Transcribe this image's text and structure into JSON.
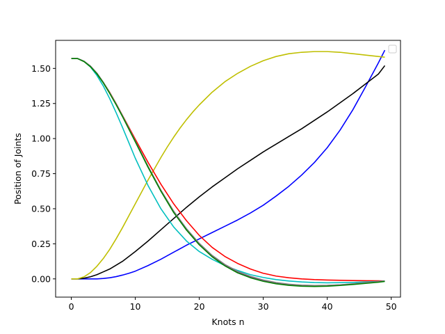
{
  "chart_data": {
    "type": "line",
    "title": "",
    "xlabel": "Knots n",
    "ylabel": "Position of Joints",
    "xlim": [
      -2.45,
      51.45
    ],
    "ylim": [
      -0.13,
      1.7
    ],
    "xticks": [
      0,
      10,
      20,
      30,
      40,
      50
    ],
    "yticks": [
      0.0,
      0.25,
      0.5,
      0.75,
      1.0,
      1.25,
      1.5
    ],
    "grid": false,
    "legend": {
      "position": "top-right",
      "entries": []
    },
    "series": [
      {
        "color": "#0000ff",
        "x": [
          0,
          1,
          2,
          3,
          4,
          5,
          6,
          7,
          8,
          9,
          10,
          12,
          14,
          16,
          18,
          20,
          22,
          24,
          26,
          28,
          30,
          32,
          34,
          36,
          38,
          40,
          42,
          44,
          46,
          48,
          49
        ],
        "y": [
          0.0,
          0.0,
          0.0,
          0.0,
          0.0,
          0.003,
          0.008,
          0.016,
          0.027,
          0.04,
          0.055,
          0.095,
          0.14,
          0.19,
          0.24,
          0.285,
          0.33,
          0.375,
          0.42,
          0.47,
          0.525,
          0.59,
          0.66,
          0.74,
          0.83,
          0.935,
          1.06,
          1.205,
          1.37,
          1.54,
          1.63
        ]
      },
      {
        "color": "#000000",
        "x": [
          0,
          1,
          2,
          3,
          4,
          5,
          6,
          8,
          10,
          12,
          14,
          16,
          18,
          20,
          22,
          24,
          26,
          28,
          30,
          32,
          34,
          36,
          38,
          40,
          42,
          44,
          46,
          48,
          49
        ],
        "y": [
          0.0,
          0.0,
          0.005,
          0.015,
          0.03,
          0.05,
          0.07,
          0.125,
          0.195,
          0.27,
          0.35,
          0.43,
          0.51,
          0.585,
          0.655,
          0.72,
          0.785,
          0.845,
          0.905,
          0.96,
          1.015,
          1.07,
          1.13,
          1.19,
          1.255,
          1.32,
          1.39,
          1.46,
          1.52
        ]
      },
      {
        "color": "#bfbf00",
        "x": [
          0,
          1,
          2,
          3,
          4,
          5,
          6,
          7,
          8,
          9,
          10,
          11,
          12,
          13,
          14,
          15,
          16,
          17,
          18,
          19,
          20,
          22,
          24,
          26,
          28,
          30,
          32,
          34,
          36,
          38,
          40,
          42,
          44,
          46,
          48,
          49
        ],
        "y": [
          0.0,
          0.0,
          0.015,
          0.045,
          0.09,
          0.145,
          0.21,
          0.285,
          0.365,
          0.45,
          0.535,
          0.62,
          0.705,
          0.785,
          0.865,
          0.94,
          1.01,
          1.075,
          1.135,
          1.19,
          1.24,
          1.33,
          1.405,
          1.465,
          1.515,
          1.555,
          1.585,
          1.605,
          1.615,
          1.62,
          1.62,
          1.615,
          1.605,
          1.595,
          1.585,
          1.58
        ]
      },
      {
        "color": "#ff0000",
        "x": [
          0,
          1,
          2,
          3,
          4,
          5,
          6,
          7,
          8,
          9,
          10,
          12,
          14,
          16,
          18,
          20,
          22,
          24,
          26,
          28,
          30,
          32,
          34,
          36,
          38,
          40,
          42,
          44,
          46,
          48,
          49
        ],
        "y": [
          1.57,
          1.57,
          1.55,
          1.515,
          1.465,
          1.4,
          1.33,
          1.25,
          1.165,
          1.08,
          0.995,
          0.83,
          0.675,
          0.535,
          0.415,
          0.31,
          0.225,
          0.16,
          0.11,
          0.07,
          0.04,
          0.02,
          0.008,
          0.0,
          -0.005,
          -0.008,
          -0.01,
          -0.012,
          -0.013,
          -0.014,
          -0.015
        ]
      },
      {
        "color": "#00bfbf",
        "x": [
          0,
          1,
          2,
          3,
          4,
          5,
          6,
          7,
          8,
          9,
          10,
          12,
          14,
          16,
          18,
          20,
          22,
          24,
          26,
          28,
          30,
          32,
          34,
          36,
          38,
          40,
          42,
          44,
          46,
          48,
          49
        ],
        "y": [
          1.57,
          1.57,
          1.55,
          1.51,
          1.45,
          1.375,
          1.285,
          1.185,
          1.08,
          0.97,
          0.86,
          0.665,
          0.5,
          0.37,
          0.27,
          0.195,
          0.14,
          0.095,
          0.06,
          0.03,
          0.01,
          -0.005,
          -0.015,
          -0.022,
          -0.026,
          -0.028,
          -0.027,
          -0.025,
          -0.022,
          -0.018,
          -0.015
        ]
      },
      {
        "color": "#bf00bf",
        "x": [
          0,
          1,
          2,
          3,
          4,
          5,
          6,
          7,
          8,
          9,
          10,
          12,
          14,
          16,
          18,
          20,
          22,
          24,
          26,
          28,
          30,
          32,
          34,
          36,
          38,
          40,
          42,
          44,
          46,
          48,
          49
        ],
        "y": [
          1.57,
          1.57,
          1.55,
          1.515,
          1.465,
          1.4,
          1.325,
          1.245,
          1.16,
          1.07,
          0.98,
          0.8,
          0.63,
          0.48,
          0.355,
          0.25,
          0.165,
          0.1,
          0.05,
          0.015,
          -0.01,
          -0.028,
          -0.04,
          -0.046,
          -0.048,
          -0.047,
          -0.043,
          -0.036,
          -0.028,
          -0.02,
          -0.016
        ]
      },
      {
        "color": "#808080",
        "x": [
          0,
          1,
          2,
          3,
          4,
          5,
          6,
          7,
          8,
          9,
          10,
          12,
          14,
          16,
          18,
          20,
          22,
          24,
          26,
          28,
          30,
          32,
          34,
          36,
          38,
          40,
          42,
          44,
          46,
          48,
          49
        ],
        "y": [
          1.57,
          1.57,
          1.552,
          1.517,
          1.467,
          1.402,
          1.328,
          1.248,
          1.163,
          1.073,
          0.983,
          0.803,
          0.633,
          0.483,
          0.358,
          0.253,
          0.168,
          0.103,
          0.053,
          0.018,
          -0.008,
          -0.026,
          -0.038,
          -0.045,
          -0.047,
          -0.046,
          -0.042,
          -0.035,
          -0.027,
          -0.02,
          -0.016
        ]
      },
      {
        "color": "#008000",
        "x": [
          0,
          1,
          2,
          3,
          4,
          5,
          6,
          7,
          8,
          9,
          10,
          12,
          14,
          16,
          18,
          20,
          22,
          24,
          26,
          28,
          30,
          32,
          34,
          36,
          38,
          40,
          42,
          44,
          46,
          48,
          49
        ],
        "y": [
          1.57,
          1.57,
          1.548,
          1.512,
          1.462,
          1.397,
          1.322,
          1.242,
          1.157,
          1.067,
          0.977,
          0.795,
          0.625,
          0.473,
          0.348,
          0.243,
          0.158,
          0.093,
          0.043,
          0.008,
          -0.017,
          -0.035,
          -0.046,
          -0.052,
          -0.054,
          -0.052,
          -0.047,
          -0.04,
          -0.032,
          -0.024,
          -0.018
        ]
      }
    ]
  }
}
